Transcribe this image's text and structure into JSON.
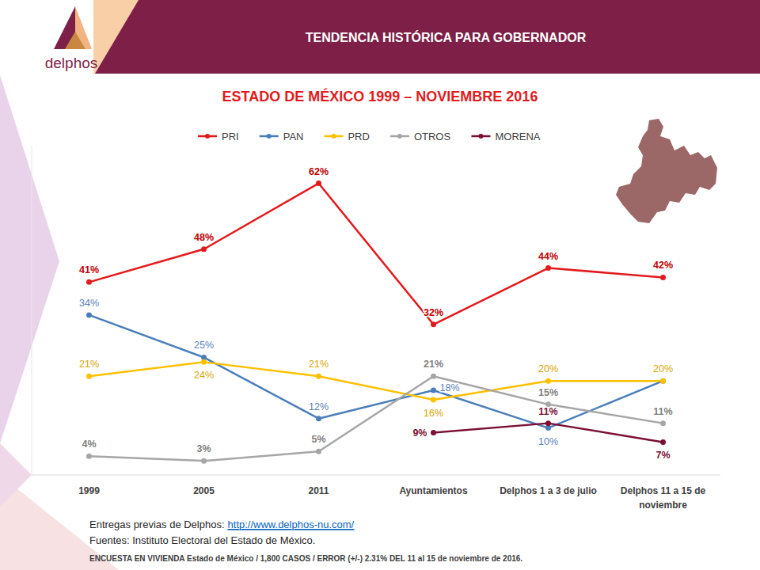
{
  "header": {
    "title": "TENDENCIA HISTÓRICA PARA GOBERNADOR",
    "brand": "delphos"
  },
  "chart_data": {
    "type": "line",
    "title": "ESTADO DE MÉXICO 1999 – NOVIEMBRE 2016",
    "categories": [
      "1999",
      "2005",
      "2011",
      "Ayuntamientos",
      "Delphos 1 a 3 de julio",
      "Delphos 11 a 15 de noviembre"
    ],
    "series": [
      {
        "name": "PRI",
        "color": "#e31a1c",
        "marker": "circle",
        "values": [
          41,
          48,
          62,
          32,
          44,
          42
        ],
        "value_labels": [
          "41%",
          "48%",
          "62%",
          "32%",
          "44%",
          "42%"
        ]
      },
      {
        "name": "PAN",
        "color": "#4a7ebb",
        "marker": "circle",
        "values": [
          34,
          25,
          12,
          18,
          10,
          20
        ],
        "value_labels": [
          "34%",
          "25%",
          "12%",
          "18%",
          "10%",
          null
        ]
      },
      {
        "name": "PRD",
        "color": "#ffc000",
        "marker": "circle",
        "values": [
          21,
          24,
          21,
          16,
          20,
          20
        ],
        "value_labels": [
          "21%",
          "24%",
          "21%",
          "16%",
          "20%",
          "20%"
        ]
      },
      {
        "name": "OTROS",
        "color": "#a6a6a6",
        "marker": "circle",
        "values": [
          4,
          3,
          5,
          21,
          15,
          11
        ],
        "value_labels": [
          "4%",
          "3%",
          "5%",
          "21%",
          "15%",
          "11%"
        ]
      },
      {
        "name": "MORENA",
        "color": "#7b1034",
        "marker": "circle",
        "values": [
          null,
          null,
          null,
          9,
          11,
          7
        ],
        "value_labels": [
          null,
          null,
          null,
          "9%",
          "11%",
          "7%"
        ]
      }
    ],
    "ylim": [
      0,
      70
    ],
    "grid": false,
    "legend": "top",
    "data_labels": true,
    "tick_labels": "x"
  },
  "footer": {
    "previous_label": "Entregas previas de Delphos:",
    "link": "http://www.delphos-nu.com/",
    "sources": "Fuentes: Instituto Electoral del Estado de México.",
    "note": "ENCUESTA EN VIVIENDA Estado de México /  1,800 CASOS / ERROR (+/-) 2.31% DEL 11 al 15 de noviembre de 2016."
  }
}
